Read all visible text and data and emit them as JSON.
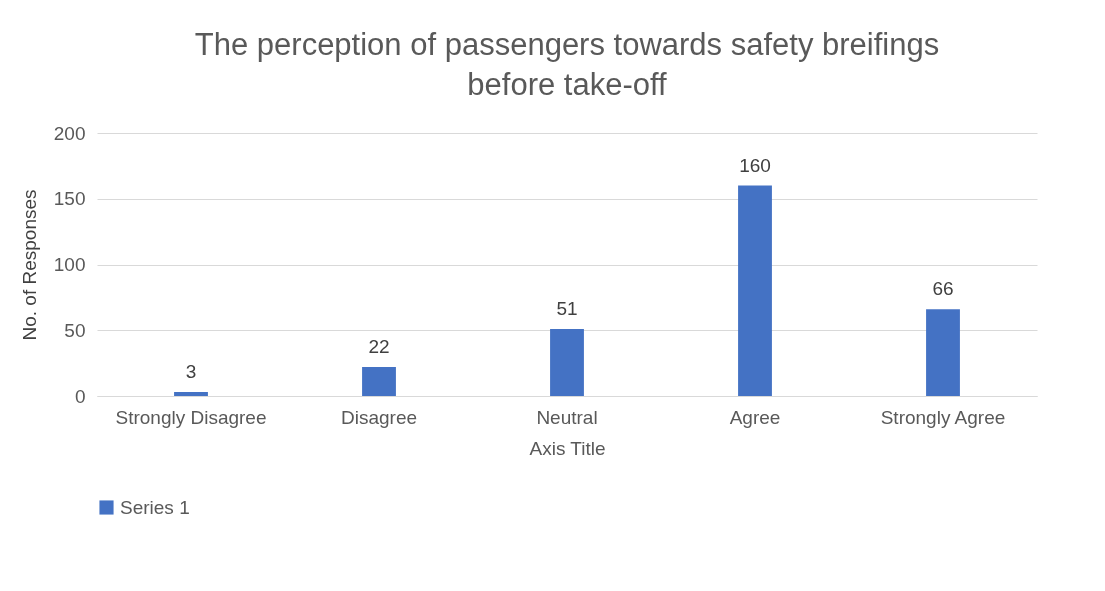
{
  "chart_data": {
    "type": "bar",
    "title": "The perception of passengers towards safety breifings before take-off",
    "xlabel": "Axis Title",
    "ylabel": "No. of Responses",
    "categories": [
      "Strongly Disagree",
      "Disagree",
      "Neutral",
      "Agree",
      "Strongly Agree"
    ],
    "series": [
      {
        "name": "Series 1",
        "color": "#4472c4",
        "values": [
          3,
          22,
          51,
          160,
          66
        ]
      }
    ],
    "ylim": [
      0,
      200
    ],
    "yticks": [
      0,
      50,
      100,
      150,
      200
    ],
    "grid": "y",
    "legend": "bottom",
    "data_labels": true
  }
}
